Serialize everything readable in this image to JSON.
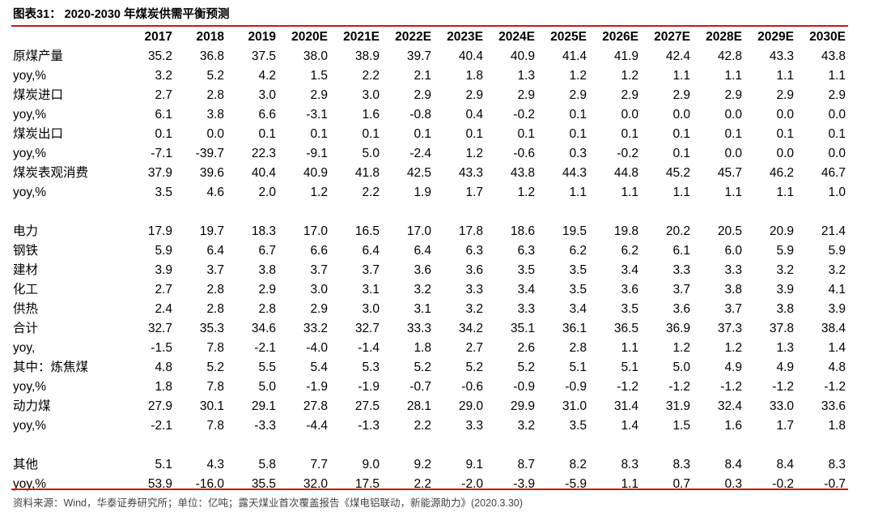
{
  "title": "图表31： 2020-2030 年煤炭供需平衡预测",
  "source": "资料来源：Wind，华泰证券研究所；单位：亿吨；露天煤业首次覆盖报告《煤电铝联动，新能源助力》(2020.3.30)",
  "colors": {
    "rule": "#c8161d"
  },
  "table": {
    "columns": [
      "2017",
      "2018",
      "2019",
      "2020E",
      "2021E",
      "2022E",
      "2023E",
      "2024E",
      "2025E",
      "2026E",
      "2027E",
      "2028E",
      "2029E",
      "2030E"
    ],
    "sections": [
      {
        "rows": [
          {
            "label": "原煤产量",
            "values": [
              "35.2",
              "36.8",
              "37.5",
              "38.0",
              "38.9",
              "39.7",
              "40.4",
              "40.9",
              "41.4",
              "41.9",
              "42.4",
              "42.8",
              "43.3",
              "43.8"
            ]
          },
          {
            "label": "yoy,%",
            "values": [
              "3.2",
              "5.2",
              "4.2",
              "1.5",
              "2.2",
              "2.1",
              "1.8",
              "1.3",
              "1.2",
              "1.2",
              "1.1",
              "1.1",
              "1.1",
              "1.1"
            ]
          },
          {
            "label": "煤炭进口",
            "values": [
              "2.7",
              "2.8",
              "3.0",
              "2.9",
              "3.0",
              "2.9",
              "2.9",
              "2.9",
              "2.9",
              "2.9",
              "2.9",
              "2.9",
              "2.9",
              "2.9"
            ]
          },
          {
            "label": "yoy,%",
            "values": [
              "6.1",
              "3.8",
              "6.6",
              "-3.1",
              "1.6",
              "-0.8",
              "0.4",
              "-0.2",
              "0.1",
              "0.0",
              "0.0",
              "0.0",
              "0.0",
              "0.0"
            ]
          },
          {
            "label": "煤炭出口",
            "values": [
              "0.1",
              "0.0",
              "0.1",
              "0.1",
              "0.1",
              "0.1",
              "0.1",
              "0.1",
              "0.1",
              "0.1",
              "0.1",
              "0.1",
              "0.1",
              "0.1"
            ]
          },
          {
            "label": "yoy,%",
            "values": [
              "-7.1",
              "-39.7",
              "22.3",
              "-9.1",
              "5.0",
              "-2.4",
              "1.2",
              "-0.6",
              "0.3",
              "-0.2",
              "0.1",
              "0.0",
              "0.0",
              "0.0"
            ]
          },
          {
            "label": "煤炭表观消费",
            "values": [
              "37.9",
              "39.6",
              "40.4",
              "40.9",
              "41.8",
              "42.5",
              "43.3",
              "43.8",
              "44.3",
              "44.8",
              "45.2",
              "45.7",
              "46.2",
              "46.7"
            ]
          },
          {
            "label": "yoy,%",
            "values": [
              "3.5",
              "4.6",
              "2.0",
              "1.2",
              "2.2",
              "1.9",
              "1.7",
              "1.2",
              "1.1",
              "1.1",
              "1.1",
              "1.1",
              "1.1",
              "1.0"
            ]
          }
        ]
      },
      {
        "rows": [
          {
            "label": "电力",
            "values": [
              "17.9",
              "19.7",
              "18.3",
              "17.0",
              "16.5",
              "17.0",
              "17.8",
              "18.6",
              "19.5",
              "19.8",
              "20.2",
              "20.5",
              "20.9",
              "21.4"
            ]
          },
          {
            "label": "钢铁",
            "values": [
              "5.9",
              "6.4",
              "6.7",
              "6.6",
              "6.4",
              "6.4",
              "6.3",
              "6.3",
              "6.2",
              "6.2",
              "6.1",
              "6.0",
              "5.9",
              "5.9"
            ]
          },
          {
            "label": "建材",
            "values": [
              "3.9",
              "3.7",
              "3.8",
              "3.7",
              "3.7",
              "3.6",
              "3.6",
              "3.5",
              "3.5",
              "3.4",
              "3.3",
              "3.3",
              "3.2",
              "3.2"
            ]
          },
          {
            "label": "化工",
            "values": [
              "2.7",
              "2.8",
              "2.9",
              "3.0",
              "3.1",
              "3.2",
              "3.3",
              "3.4",
              "3.5",
              "3.6",
              "3.7",
              "3.8",
              "3.9",
              "4.1"
            ]
          },
          {
            "label": "供热",
            "values": [
              "2.4",
              "2.8",
              "2.8",
              "2.9",
              "3.0",
              "3.1",
              "3.2",
              "3.3",
              "3.4",
              "3.5",
              "3.6",
              "3.7",
              "3.8",
              "3.9"
            ]
          },
          {
            "label": "合计",
            "values": [
              "32.7",
              "35.3",
              "34.6",
              "33.2",
              "32.7",
              "33.3",
              "34.2",
              "35.1",
              "36.1",
              "36.5",
              "36.9",
              "37.3",
              "37.8",
              "38.4"
            ]
          },
          {
            "label": "yoy,",
            "values": [
              "-1.5",
              "7.8",
              "-2.1",
              "-4.0",
              "-1.4",
              "1.8",
              "2.7",
              "2.6",
              "2.8",
              "1.1",
              "1.2",
              "1.2",
              "1.3",
              "1.4"
            ]
          },
          {
            "label": "其中：炼焦煤",
            "values": [
              "4.8",
              "5.2",
              "5.5",
              "5.4",
              "5.3",
              "5.2",
              "5.2",
              "5.2",
              "5.1",
              "5.1",
              "5.0",
              "4.9",
              "4.9",
              "4.8"
            ]
          },
          {
            "label": "yoy,%",
            "values": [
              "1.8",
              "7.8",
              "5.0",
              "-1.9",
              "-1.9",
              "-0.7",
              "-0.6",
              "-0.9",
              "-0.9",
              "-1.2",
              "-1.2",
              "-1.2",
              "-1.2",
              "-1.2"
            ]
          },
          {
            "label": "动力煤",
            "values": [
              "27.9",
              "30.1",
              "29.1",
              "27.8",
              "27.5",
              "28.1",
              "29.0",
              "29.9",
              "31.0",
              "31.4",
              "31.9",
              "32.4",
              "33.0",
              "33.6"
            ]
          },
          {
            "label": "yoy,%",
            "values": [
              "-2.1",
              "7.8",
              "-3.3",
              "-4.4",
              "-1.3",
              "2.2",
              "3.3",
              "3.2",
              "3.5",
              "1.4",
              "1.5",
              "1.6",
              "1.7",
              "1.8"
            ]
          }
        ]
      },
      {
        "rows": [
          {
            "label": "其他",
            "values": [
              "5.1",
              "4.3",
              "5.8",
              "7.7",
              "9.0",
              "9.2",
              "9.1",
              "8.7",
              "8.2",
              "8.3",
              "8.3",
              "8.4",
              "8.4",
              "8.3"
            ]
          },
          {
            "label": "yoy,%",
            "values": [
              "53.9",
              "-16.0",
              "35.5",
              "32.0",
              "17.5",
              "2.2",
              "-2.0",
              "-3.9",
              "-5.9",
              "1.1",
              "0.7",
              "0.3",
              "-0.2",
              "-0.7"
            ]
          }
        ]
      }
    ]
  }
}
